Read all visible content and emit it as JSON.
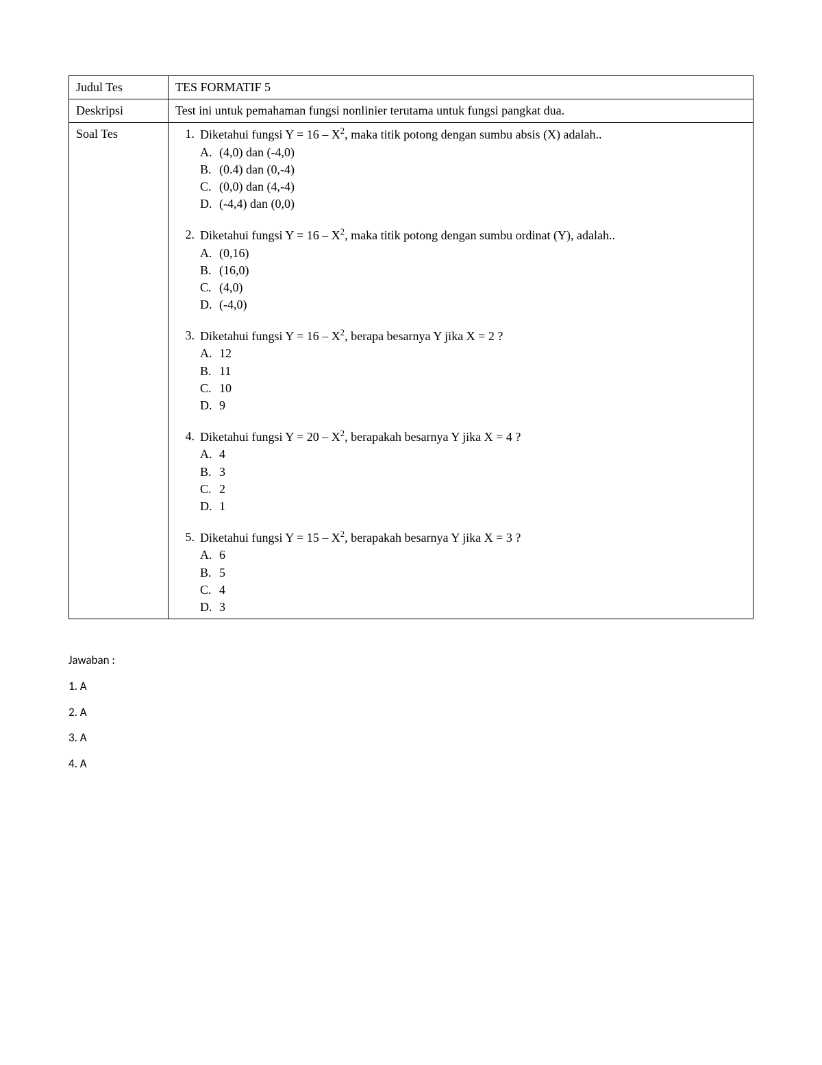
{
  "rows": {
    "title_label": "Judul Tes",
    "title_value": "TES FORMATIF 5",
    "desc_label": "Deskripsi",
    "desc_value": "Test ini untuk pemahaman fungsi nonlinier terutama untuk fungsi pangkat dua.",
    "questions_label": "Soal Tes"
  },
  "questions": [
    {
      "num": "1.",
      "text_html": "Diketahui fungsi Y = 16 – X<sup>2</sup>, maka titik potong dengan sumbu absis (X) adalah..",
      "options": [
        {
          "letter": "A.",
          "text": "(4,0) dan (-4,0)"
        },
        {
          "letter": "B.",
          "text": "(0.4) dan (0,-4)"
        },
        {
          "letter": "C.",
          "text": "(0,0) dan (4,-4)"
        },
        {
          "letter": "D.",
          "text": "(-4,4) dan (0,0)"
        }
      ]
    },
    {
      "num": "2.",
      "text_html": "Diketahui fungsi Y = 16 – X<sup>2</sup>, maka titik potong dengan sumbu ordinat (Y), adalah..",
      "options": [
        {
          "letter": "A.",
          "text": "(0,16)"
        },
        {
          "letter": "B.",
          "text": "(16,0)"
        },
        {
          "letter": "C.",
          "text": "(4,0)"
        },
        {
          "letter": "D.",
          "text": "(-4,0)"
        }
      ]
    },
    {
      "num": "3.",
      "text_html": "Diketahui fungsi Y = 16 – X<sup>2</sup>, berapa besarnya Y jika X = 2 ?",
      "options": [
        {
          "letter": "A.",
          "text": "12"
        },
        {
          "letter": "B.",
          "text": "11"
        },
        {
          "letter": "C.",
          "text": "10"
        },
        {
          "letter": "D.",
          "text": "9"
        }
      ]
    },
    {
      "num": "4.",
      "text_html": "Diketahui fungsi Y = 20 – X<sup>2</sup>, berapakah besarnya Y jika X = 4 ?",
      "options": [
        {
          "letter": "A.",
          "text": "4"
        },
        {
          "letter": "B.",
          "text": "3"
        },
        {
          "letter": "C.",
          "text": "2"
        },
        {
          "letter": "D.",
          "text": "1"
        }
      ]
    },
    {
      "num": "5.",
      "text_html": "Diketahui fungsi Y = 15 – X<sup>2</sup>, berapakah besarnya Y jika X = 3 ?",
      "options": [
        {
          "letter": "A.",
          "text": "6"
        },
        {
          "letter": "B.",
          "text": "5"
        },
        {
          "letter": "C.",
          "text": "4"
        },
        {
          "letter": "D.",
          "text": "3"
        }
      ]
    }
  ],
  "answers": {
    "title": "Jawaban :",
    "items": [
      "1. A",
      "2. A",
      "3. A",
      "4. A"
    ]
  }
}
